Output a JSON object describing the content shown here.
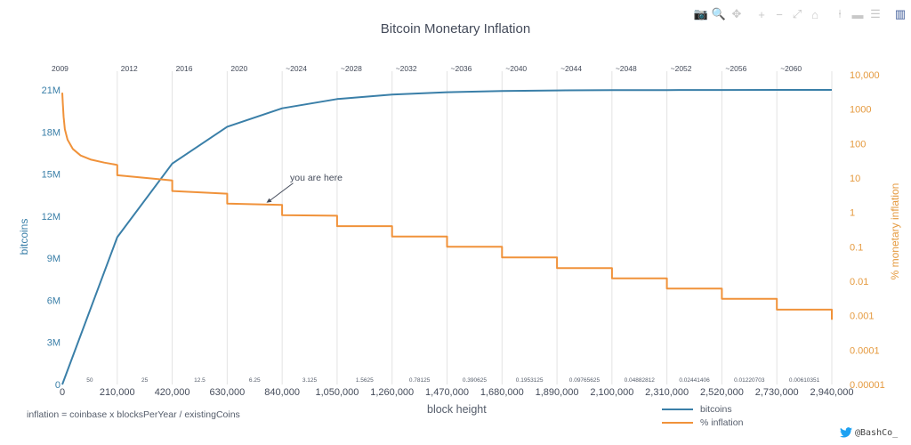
{
  "title": "Bitcoin Monetary Inflation",
  "modebar": [
    {
      "name": "camera-icon",
      "glyph": "📷"
    },
    {
      "name": "zoom-icon",
      "glyph": "🔍"
    },
    {
      "name": "pan-icon",
      "glyph": "✥"
    },
    {
      "name": "zoom-in-icon",
      "glyph": "+"
    },
    {
      "name": "zoom-out-icon",
      "glyph": "−"
    },
    {
      "name": "autoscale-icon",
      "glyph": "⤢"
    },
    {
      "name": "home-icon",
      "glyph": "⌂"
    },
    {
      "name": "spike-lines-icon",
      "glyph": "⍿"
    },
    {
      "name": "hover-closest-icon",
      "glyph": "▬"
    },
    {
      "name": "hover-compare-icon",
      "glyph": "☰"
    },
    {
      "name": "plotly-logo-icon",
      "glyph": "▥"
    }
  ],
  "footnote": "inflation = coinbase x blocksPerYear / existingCoins",
  "legend": [
    {
      "label": "bitcoins",
      "color": "#3a7fa8"
    },
    {
      "label": "% inflation",
      "color": "#f0923a"
    }
  ],
  "credit": "@BashCo_",
  "chart_data": {
    "type": "line",
    "title": "Bitcoin Monetary Inflation",
    "xlabel": "block height",
    "ylabel": "bitcoins",
    "y2label": "% monetary inflation",
    "xlim": [
      0,
      2940000
    ],
    "ylim": [
      0,
      21000000
    ],
    "y2lim": [
      1e-05,
      10000
    ],
    "y2scale": "log",
    "grid": "vertical at halvings",
    "legend_position": "bottom-right",
    "x_ticks": [
      0,
      210000,
      420000,
      630000,
      840000,
      1050000,
      1260000,
      1470000,
      1680000,
      1890000,
      2100000,
      2310000,
      2520000,
      2730000,
      2940000
    ],
    "x_tick_labels": [
      "0",
      "210,000",
      "420,000",
      "630,000",
      "840,000",
      "1,050,000",
      "1,260,000",
      "1,470,000",
      "1,680,000",
      "1,890,000",
      "2,100,000",
      "2,310,000",
      "2,520,000",
      "2,730,000",
      "2,940,000"
    ],
    "y_ticks": [
      0,
      3000000,
      6000000,
      9000000,
      12000000,
      15000000,
      18000000,
      21000000
    ],
    "y_tick_labels": [
      "0",
      "3M",
      "6M",
      "9M",
      "12M",
      "15M",
      "18M",
      "21M"
    ],
    "y2_ticks": [
      10000,
      1000,
      100,
      10,
      1,
      0.1,
      0.01,
      0.001,
      0.0001,
      1e-05
    ],
    "y2_tick_labels": [
      "10,000",
      "1000",
      "100",
      "10",
      "1",
      "0.1",
      "0.01",
      "0.001",
      "0.0001",
      "0.00001"
    ],
    "year_labels": [
      {
        "x": 0,
        "label": "2009"
      },
      {
        "x": 210000,
        "label": "2012"
      },
      {
        "x": 420000,
        "label": "2016"
      },
      {
        "x": 630000,
        "label": "2020"
      },
      {
        "x": 840000,
        "label": "~2024"
      },
      {
        "x": 1050000,
        "label": "~2028"
      },
      {
        "x": 1260000,
        "label": "~2032"
      },
      {
        "x": 1470000,
        "label": "~2036"
      },
      {
        "x": 1680000,
        "label": "~2040"
      },
      {
        "x": 1890000,
        "label": "~2044"
      },
      {
        "x": 2100000,
        "label": "~2048"
      },
      {
        "x": 2310000,
        "label": "~2052"
      },
      {
        "x": 2520000,
        "label": "~2056"
      },
      {
        "x": 2730000,
        "label": "~2060"
      }
    ],
    "reward_labels": [
      {
        "x": 105000,
        "label": "50"
      },
      {
        "x": 315000,
        "label": "25"
      },
      {
        "x": 525000,
        "label": "12.5"
      },
      {
        "x": 735000,
        "label": "6.25"
      },
      {
        "x": 945000,
        "label": "3.125"
      },
      {
        "x": 1155000,
        "label": "1.5625"
      },
      {
        "x": 1365000,
        "label": "0.78125"
      },
      {
        "x": 1575000,
        "label": "0.390625"
      },
      {
        "x": 1785000,
        "label": "0.1953125"
      },
      {
        "x": 1995000,
        "label": "0.09765625"
      },
      {
        "x": 2205000,
        "label": "0.04882812"
      },
      {
        "x": 2415000,
        "label": "0.02441406"
      },
      {
        "x": 2625000,
        "label": "0.01220703"
      },
      {
        "x": 2835000,
        "label": "0.00610351"
      }
    ],
    "annotation": {
      "text": "you are here",
      "x": 780000,
      "y2": 1.7
    },
    "series": [
      {
        "name": "bitcoins",
        "axis": "y",
        "color": "#3a7fa8",
        "x": [
          0,
          210000,
          420000,
          630000,
          840000,
          1050000,
          1260000,
          1470000,
          1680000,
          1890000,
          2100000,
          2310000,
          2520000,
          2730000,
          2940000
        ],
        "values": [
          0,
          10500000,
          15750000,
          18375000,
          19687500,
          20343750,
          20671875,
          20835937,
          20917968,
          20958984,
          20979492,
          20989746,
          20994873,
          20997436,
          20998718
        ]
      },
      {
        "name": "% inflation",
        "axis": "y2",
        "color": "#f0923a",
        "x": [
          0,
          2000,
          5000,
          10000,
          20000,
          40000,
          70000,
          110000,
          160000,
          209999,
          210000,
          419999,
          420000,
          629999,
          630000,
          839999,
          840000,
          1049999,
          1050000,
          1259999,
          1260000,
          1469999,
          1470000,
          1679999,
          1680000,
          1889999,
          1890000,
          2099999,
          2100000,
          2309999,
          2310000,
          2519999,
          2520000,
          2729999,
          2730000,
          2939999,
          2940000
        ],
        "values": [
          3000,
          1500,
          600,
          260,
          130,
          70,
          45,
          34,
          28,
          24,
          12,
          8.5,
          4.2,
          3.5,
          1.8,
          1.65,
          0.83,
          0.8,
          0.4,
          0.4,
          0.2,
          0.2,
          0.1,
          0.1,
          0.049,
          0.049,
          0.024,
          0.024,
          0.0122,
          0.0122,
          0.0061,
          0.0061,
          0.0031,
          0.0031,
          0.0015,
          0.0015,
          0.00076
        ]
      }
    ]
  }
}
